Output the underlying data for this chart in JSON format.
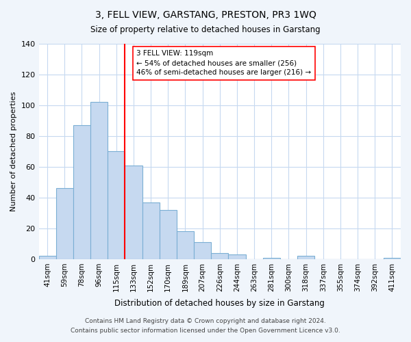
{
  "title": "3, FELL VIEW, GARSTANG, PRESTON, PR3 1WQ",
  "subtitle": "Size of property relative to detached houses in Garstang",
  "xlabel": "Distribution of detached houses by size in Garstang",
  "ylabel": "Number of detached properties",
  "bar_labels": [
    "41sqm",
    "59sqm",
    "78sqm",
    "96sqm",
    "115sqm",
    "133sqm",
    "152sqm",
    "170sqm",
    "189sqm",
    "207sqm",
    "226sqm",
    "244sqm",
    "263sqm",
    "281sqm",
    "300sqm",
    "318sqm",
    "337sqm",
    "355sqm",
    "374sqm",
    "392sqm",
    "411sqm"
  ],
  "bar_values": [
    2,
    46,
    87,
    102,
    70,
    61,
    37,
    32,
    18,
    11,
    4,
    3,
    0,
    1,
    0,
    2,
    0,
    0,
    0,
    0,
    1
  ],
  "bar_color": "#c6d9f0",
  "bar_edge_color": "#7bafd4",
  "vline_x_index": 4,
  "vline_color": "red",
  "annotation_title": "3 FELL VIEW: 119sqm",
  "annotation_line1": "← 54% of detached houses are smaller (256)",
  "annotation_line2": "46% of semi-detached houses are larger (216) →",
  "annotation_box_color": "white",
  "annotation_box_edge": "red",
  "ylim": [
    0,
    140
  ],
  "yticks": [
    0,
    20,
    40,
    60,
    80,
    100,
    120,
    140
  ],
  "footer1": "Contains HM Land Registry data © Crown copyright and database right 2024.",
  "footer2": "Contains public sector information licensed under the Open Government Licence v3.0.",
  "bg_color": "#f0f5fb",
  "plot_bg_color": "white",
  "grid_color": "#c6d9f0"
}
